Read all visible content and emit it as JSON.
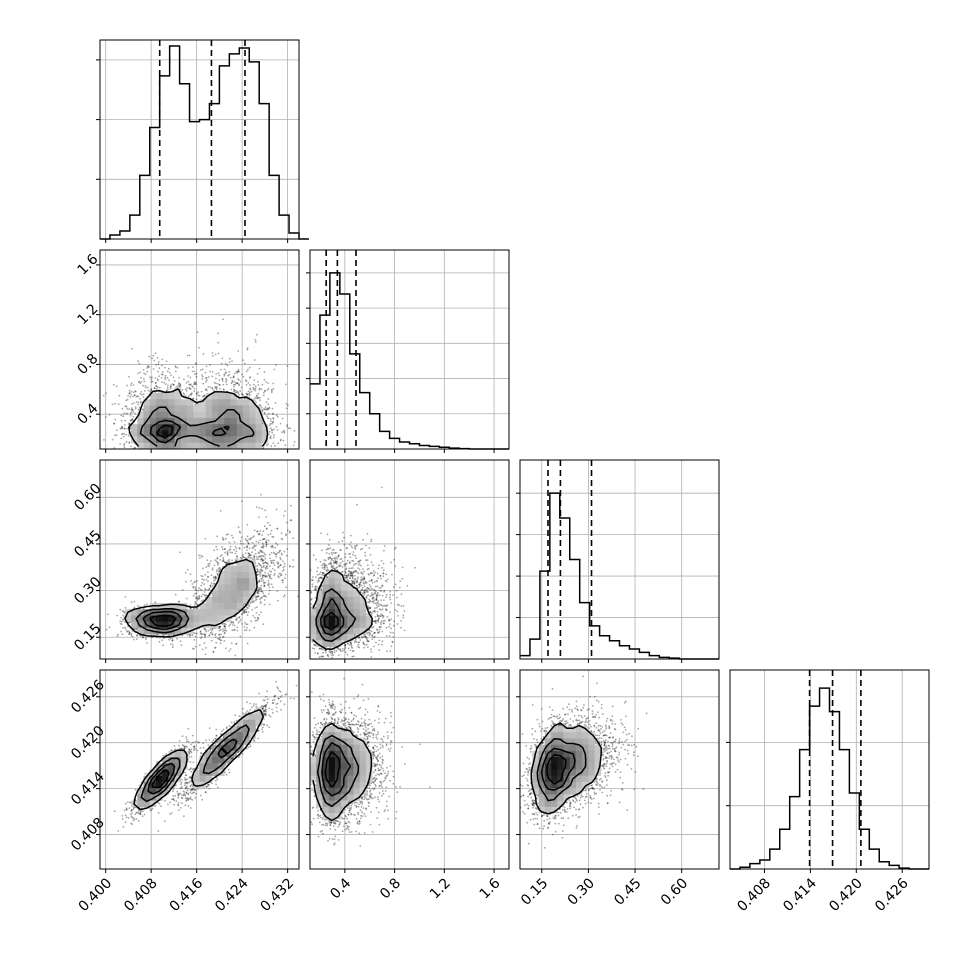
{
  "figure": {
    "type": "corner-plot",
    "grid": true,
    "colors": {
      "ink": "#000000",
      "grid": "#b0b0b0",
      "background": "#ffffff",
      "scatter": "#000000"
    }
  },
  "chart_data": {
    "type": "corner",
    "parameters": [
      {
        "range": [
          0.399,
          0.434
        ],
        "ticks": [
          0.4,
          0.408,
          0.416,
          0.424,
          0.432
        ],
        "tick_labels": [
          "0.400",
          "0.408",
          "0.416",
          "0.424",
          "0.432"
        ],
        "quantiles": [
          0.4095,
          0.4186,
          0.4245
        ],
        "hist": {
          "edges_start": 0.399,
          "bin_width": 0.00175,
          "counts": [
            0,
            0.02,
            0.04,
            0.12,
            0.32,
            0.56,
            0.82,
            0.97,
            0.78,
            0.59,
            0.6,
            0.68,
            0.87,
            0.93,
            0.96,
            0.89,
            0.68,
            0.32,
            0.12,
            0.03,
            0
          ]
        },
        "ylim": [
          0,
          1.0
        ],
        "y_ticks": [
          0.3,
          0.6,
          0.9
        ]
      },
      {
        "range": [
          0.12,
          1.72
        ],
        "ticks": [
          0.4,
          0.8,
          1.2,
          1.6
        ],
        "tick_labels": [
          "0.4",
          "0.8",
          "1.2",
          "1.6"
        ],
        "quantiles": [
          0.25,
          0.34,
          0.49
        ],
        "hist": {
          "edges_start": 0.12,
          "bin_width": 0.08,
          "counts": [
            0.37,
            0.76,
            1.0,
            0.88,
            0.54,
            0.32,
            0.2,
            0.1,
            0.06,
            0.04,
            0.03,
            0.02,
            0.015,
            0.01,
            0.005,
            0.002,
            0,
            0,
            0,
            0
          ]
        },
        "ylim": [
          0,
          1.13
        ],
        "y_ticks": [
          0.2,
          0.4,
          0.6,
          0.8,
          1.0
        ]
      },
      {
        "range": [
          0.08,
          0.72
        ],
        "ticks": [
          0.15,
          0.3,
          0.45,
          0.6
        ],
        "tick_labels": [
          "0.15",
          "0.30",
          "0.45",
          "0.60"
        ],
        "quantiles": [
          0.17,
          0.21,
          0.31
        ],
        "hist": {
          "edges_start": 0.08,
          "bin_width": 0.032,
          "counts": [
            0.02,
            0.12,
            0.53,
            1.0,
            0.85,
            0.6,
            0.34,
            0.2,
            0.14,
            0.11,
            0.08,
            0.06,
            0.04,
            0.02,
            0.01,
            0.005,
            0,
            0,
            0,
            0
          ]
        },
        "ylim": [
          0,
          1.2
        ],
        "y_ticks": [
          0.25,
          0.5,
          0.75,
          1.0
        ]
      },
      {
        "range": [
          0.4035,
          0.4295
        ],
        "ticks": [
          0.408,
          0.414,
          0.42,
          0.426
        ],
        "tick_labels": [
          "0.408",
          "0.414",
          "0.420",
          "0.426"
        ],
        "quantiles": [
          0.4139,
          0.4169,
          0.4206
        ],
        "hist": {
          "edges_start": 0.4035,
          "bin_width": 0.0013,
          "counts": [
            0,
            0.01,
            0.03,
            0.05,
            0.11,
            0.22,
            0.4,
            0.66,
            0.9,
            1.0,
            0.87,
            0.66,
            0.42,
            0.22,
            0.11,
            0.04,
            0.02,
            0.005,
            0,
            0
          ]
        },
        "ylim": [
          0,
          1.1
        ],
        "y_ticks": [
          0.35,
          0.7
        ]
      }
    ],
    "pairs": [
      {
        "row": 1,
        "col": 0,
        "clusters": [
          {
            "cx": 0.4097,
            "cy": 0.3,
            "sx": 0.0032,
            "sy": 0.15,
            "rho": 0.0,
            "w": 0.45,
            "skew_y": 1.4
          },
          {
            "cx": 0.4215,
            "cy": 0.31,
            "sx": 0.0042,
            "sy": 0.16,
            "rho": 0.0,
            "w": 0.55,
            "skew_y": 1.4
          }
        ]
      },
      {
        "row": 2,
        "col": 0,
        "clusters": [
          {
            "cx": 0.4098,
            "cy": 0.205,
            "sx": 0.0032,
            "sy": 0.035,
            "rho": 0.0,
            "w": 0.45,
            "skew_y": 0.6
          },
          {
            "cx": 0.4225,
            "cy": 0.3,
            "sx": 0.004,
            "sy": 0.1,
            "rho": 0.55,
            "w": 0.55,
            "skew_y": 0.9
          }
        ]
      },
      {
        "row": 2,
        "col": 1,
        "clusters": [
          {
            "cx": 0.33,
            "cy": 0.22,
            "sx": 0.12,
            "sy": 0.07,
            "rho": 0.15,
            "w": 1.0,
            "skew_x": 1.6,
            "skew_y": 1.3
          }
        ]
      },
      {
        "row": 3,
        "col": 0,
        "clusters": [
          {
            "cx": 0.4097,
            "cy": 0.4152,
            "sx": 0.0024,
            "sy": 0.0021,
            "rho": 0.88,
            "w": 0.45
          },
          {
            "cx": 0.421,
            "cy": 0.419,
            "sx": 0.0038,
            "sy": 0.003,
            "rho": 0.92,
            "w": 0.55
          }
        ]
      },
      {
        "row": 3,
        "col": 1,
        "clusters": [
          {
            "cx": 0.33,
            "cy": 0.4165,
            "sx": 0.11,
            "sy": 0.0033,
            "rho": 0.05,
            "w": 1.0,
            "skew_x": 1.6
          }
        ]
      },
      {
        "row": 3,
        "col": 2,
        "clusters": [
          {
            "cx": 0.21,
            "cy": 0.417,
            "sx": 0.06,
            "sy": 0.003,
            "rho": 0.35,
            "w": 1.0,
            "skew_x": 1.4
          }
        ]
      }
    ]
  }
}
